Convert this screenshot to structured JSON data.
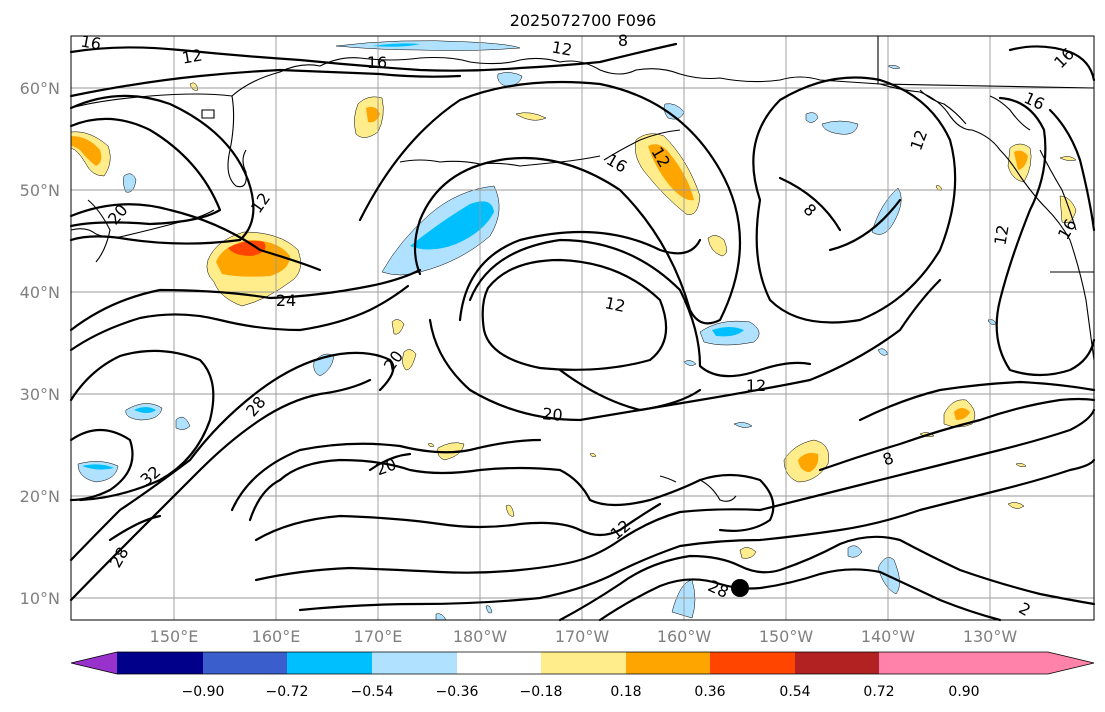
{
  "title": "2025072700 F096",
  "lat_labels": [
    "60°N",
    "50°N",
    "40°N",
    "30°N",
    "20°N",
    "10°N"
  ],
  "lon_labels": [
    "150°E",
    "160°E",
    "170°E",
    "180°W",
    "170°W",
    "160°W",
    "150°W",
    "140°W",
    "130°W"
  ],
  "contour_labels": [
    "16",
    "12",
    "16",
    "12",
    "8",
    "16",
    "16",
    "12",
    "20",
    "12",
    "16",
    "8",
    "12",
    "12",
    "24",
    "12",
    "16",
    "20",
    "12",
    "28",
    "20",
    "32",
    "20",
    "12",
    "8",
    "28",
    "28",
    "2"
  ],
  "colorbar": {
    "ticks": [
      "−0.90",
      "−0.72",
      "−0.54",
      "−0.36",
      "−0.18",
      "0.18",
      "0.36",
      "0.54",
      "0.72",
      "0.90"
    ],
    "colors": [
      "#9932cc",
      "#00008b",
      "#3a5fcd",
      "#00bfff",
      "#b0e2ff",
      "#ffffff",
      "#ffec8b",
      "#ffa500",
      "#ff4500",
      "#b22222",
      "#ff82ab"
    ]
  },
  "marker": "storm-position"
}
